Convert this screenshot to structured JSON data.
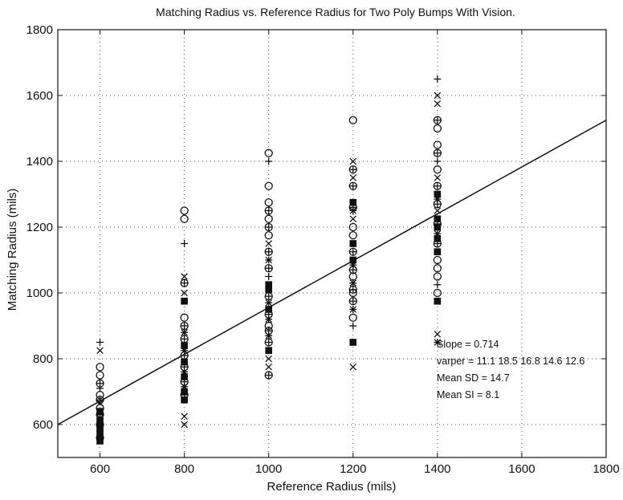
{
  "chart_data": {
    "type": "scatter",
    "title": "Matching Radius vs. Reference Radius for Two Poly Bumps With Vision.",
    "xlabel": "Reference Radius (mils)",
    "ylabel": "Matching Radius (mils)",
    "xlim": [
      500,
      1800
    ],
    "ylim": [
      500,
      1800
    ],
    "xticks": [
      600,
      800,
      1000,
      1200,
      1400,
      1600,
      1800
    ],
    "yticks": [
      600,
      800,
      1000,
      1200,
      1400,
      1600,
      1800
    ],
    "grid": "dotted",
    "marker_styles": [
      "circle",
      "plus",
      "x",
      "circle-plus",
      "star",
      "square"
    ],
    "fit_line": {
      "x": [
        500,
        1800
      ],
      "y": [
        600,
        1525
      ]
    },
    "annotations": [
      "Slope = 0.714",
      "varper = 11.1 18.5 16.8 14.6 12.6",
      "Mean SD = 14.7",
      "Mean SI = 8.1"
    ],
    "points": [
      {
        "x": 600,
        "y": 850,
        "m": "plus"
      },
      {
        "x": 600,
        "y": 825,
        "m": "x"
      },
      {
        "x": 600,
        "y": 775,
        "m": "circle"
      },
      {
        "x": 600,
        "y": 750,
        "m": "circle"
      },
      {
        "x": 600,
        "y": 725,
        "m": "circle-plus"
      },
      {
        "x": 600,
        "y": 710,
        "m": "plus"
      },
      {
        "x": 600,
        "y": 690,
        "m": "circle"
      },
      {
        "x": 600,
        "y": 675,
        "m": "circle-plus"
      },
      {
        "x": 600,
        "y": 665,
        "m": "x"
      },
      {
        "x": 600,
        "y": 650,
        "m": "circle"
      },
      {
        "x": 600,
        "y": 640,
        "m": "square"
      },
      {
        "x": 600,
        "y": 630,
        "m": "circle-plus"
      },
      {
        "x": 600,
        "y": 620,
        "m": "star"
      },
      {
        "x": 600,
        "y": 610,
        "m": "square"
      },
      {
        "x": 600,
        "y": 600,
        "m": "circle-plus"
      },
      {
        "x": 600,
        "y": 590,
        "m": "square"
      },
      {
        "x": 600,
        "y": 580,
        "m": "star"
      },
      {
        "x": 600,
        "y": 570,
        "m": "square"
      },
      {
        "x": 600,
        "y": 560,
        "m": "circle-plus"
      },
      {
        "x": 600,
        "y": 550,
        "m": "square"
      },
      {
        "x": 800,
        "y": 1250,
        "m": "circle"
      },
      {
        "x": 800,
        "y": 1225,
        "m": "circle"
      },
      {
        "x": 800,
        "y": 1150,
        "m": "plus"
      },
      {
        "x": 800,
        "y": 1050,
        "m": "x"
      },
      {
        "x": 800,
        "y": 1030,
        "m": "circle-plus"
      },
      {
        "x": 800,
        "y": 1000,
        "m": "x"
      },
      {
        "x": 800,
        "y": 975,
        "m": "square"
      },
      {
        "x": 800,
        "y": 925,
        "m": "circle"
      },
      {
        "x": 800,
        "y": 900,
        "m": "circle-plus"
      },
      {
        "x": 800,
        "y": 880,
        "m": "star"
      },
      {
        "x": 800,
        "y": 860,
        "m": "circle-plus"
      },
      {
        "x": 800,
        "y": 840,
        "m": "square"
      },
      {
        "x": 800,
        "y": 825,
        "m": "star"
      },
      {
        "x": 800,
        "y": 810,
        "m": "circle-plus"
      },
      {
        "x": 800,
        "y": 790,
        "m": "square"
      },
      {
        "x": 800,
        "y": 775,
        "m": "circle-plus"
      },
      {
        "x": 800,
        "y": 760,
        "m": "star"
      },
      {
        "x": 800,
        "y": 745,
        "m": "square"
      },
      {
        "x": 800,
        "y": 730,
        "m": "circle-plus"
      },
      {
        "x": 800,
        "y": 715,
        "m": "star"
      },
      {
        "x": 800,
        "y": 700,
        "m": "square"
      },
      {
        "x": 800,
        "y": 690,
        "m": "circle-plus"
      },
      {
        "x": 800,
        "y": 675,
        "m": "square"
      },
      {
        "x": 800,
        "y": 625,
        "m": "x"
      },
      {
        "x": 800,
        "y": 600,
        "m": "x"
      },
      {
        "x": 1000,
        "y": 1425,
        "m": "circle"
      },
      {
        "x": 1000,
        "y": 1400,
        "m": "plus"
      },
      {
        "x": 1000,
        "y": 1325,
        "m": "circle"
      },
      {
        "x": 1000,
        "y": 1275,
        "m": "circle"
      },
      {
        "x": 1000,
        "y": 1250,
        "m": "circle-plus"
      },
      {
        "x": 1000,
        "y": 1225,
        "m": "circle"
      },
      {
        "x": 1000,
        "y": 1200,
        "m": "circle-plus"
      },
      {
        "x": 1000,
        "y": 1175,
        "m": "circle"
      },
      {
        "x": 1000,
        "y": 1150,
        "m": "x"
      },
      {
        "x": 1000,
        "y": 1125,
        "m": "circle-plus"
      },
      {
        "x": 1000,
        "y": 1100,
        "m": "star"
      },
      {
        "x": 1000,
        "y": 1075,
        "m": "circle-plus"
      },
      {
        "x": 1000,
        "y": 1050,
        "m": "plus"
      },
      {
        "x": 1000,
        "y": 1025,
        "m": "square"
      },
      {
        "x": 1000,
        "y": 1010,
        "m": "square"
      },
      {
        "x": 1000,
        "y": 990,
        "m": "circle-plus"
      },
      {
        "x": 1000,
        "y": 970,
        "m": "star"
      },
      {
        "x": 1000,
        "y": 950,
        "m": "square"
      },
      {
        "x": 1000,
        "y": 935,
        "m": "circle-plus"
      },
      {
        "x": 1000,
        "y": 920,
        "m": "star"
      },
      {
        "x": 1000,
        "y": 900,
        "m": "circle"
      },
      {
        "x": 1000,
        "y": 885,
        "m": "circle-plus"
      },
      {
        "x": 1000,
        "y": 870,
        "m": "star"
      },
      {
        "x": 1000,
        "y": 850,
        "m": "circle-plus"
      },
      {
        "x": 1000,
        "y": 825,
        "m": "square"
      },
      {
        "x": 1000,
        "y": 800,
        "m": "x"
      },
      {
        "x": 1000,
        "y": 775,
        "m": "x"
      },
      {
        "x": 1000,
        "y": 750,
        "m": "circle-plus"
      },
      {
        "x": 1200,
        "y": 1525,
        "m": "circle"
      },
      {
        "x": 1200,
        "y": 1400,
        "m": "x"
      },
      {
        "x": 1200,
        "y": 1375,
        "m": "circle-plus"
      },
      {
        "x": 1200,
        "y": 1350,
        "m": "x"
      },
      {
        "x": 1200,
        "y": 1325,
        "m": "circle-plus"
      },
      {
        "x": 1200,
        "y": 1275,
        "m": "square"
      },
      {
        "x": 1200,
        "y": 1260,
        "m": "circle-plus"
      },
      {
        "x": 1200,
        "y": 1250,
        "m": "star"
      },
      {
        "x": 1200,
        "y": 1225,
        "m": "x"
      },
      {
        "x": 1200,
        "y": 1200,
        "m": "circle"
      },
      {
        "x": 1200,
        "y": 1175,
        "m": "circle"
      },
      {
        "x": 1200,
        "y": 1150,
        "m": "square"
      },
      {
        "x": 1200,
        "y": 1125,
        "m": "circle-plus"
      },
      {
        "x": 1200,
        "y": 1100,
        "m": "square"
      },
      {
        "x": 1200,
        "y": 1085,
        "m": "star"
      },
      {
        "x": 1200,
        "y": 1070,
        "m": "circle-plus"
      },
      {
        "x": 1200,
        "y": 1050,
        "m": "circle"
      },
      {
        "x": 1200,
        "y": 1030,
        "m": "star"
      },
      {
        "x": 1200,
        "y": 1010,
        "m": "circle-plus"
      },
      {
        "x": 1200,
        "y": 1000,
        "m": "circle"
      },
      {
        "x": 1200,
        "y": 975,
        "m": "circle-plus"
      },
      {
        "x": 1200,
        "y": 950,
        "m": "star"
      },
      {
        "x": 1200,
        "y": 925,
        "m": "circle"
      },
      {
        "x": 1200,
        "y": 900,
        "m": "plus"
      },
      {
        "x": 1200,
        "y": 850,
        "m": "square"
      },
      {
        "x": 1200,
        "y": 775,
        "m": "x"
      },
      {
        "x": 1400,
        "y": 1650,
        "m": "plus"
      },
      {
        "x": 1400,
        "y": 1600,
        "m": "x"
      },
      {
        "x": 1400,
        "y": 1575,
        "m": "x"
      },
      {
        "x": 1400,
        "y": 1525,
        "m": "circle-plus"
      },
      {
        "x": 1400,
        "y": 1500,
        "m": "circle"
      },
      {
        "x": 1400,
        "y": 1450,
        "m": "circle"
      },
      {
        "x": 1400,
        "y": 1425,
        "m": "circle-plus"
      },
      {
        "x": 1400,
        "y": 1400,
        "m": "plus"
      },
      {
        "x": 1400,
        "y": 1375,
        "m": "circle"
      },
      {
        "x": 1400,
        "y": 1350,
        "m": "x"
      },
      {
        "x": 1400,
        "y": 1325,
        "m": "circle-plus"
      },
      {
        "x": 1400,
        "y": 1300,
        "m": "square"
      },
      {
        "x": 1400,
        "y": 1285,
        "m": "star"
      },
      {
        "x": 1400,
        "y": 1270,
        "m": "circle-plus"
      },
      {
        "x": 1400,
        "y": 1250,
        "m": "x"
      },
      {
        "x": 1400,
        "y": 1225,
        "m": "square"
      },
      {
        "x": 1400,
        "y": 1210,
        "m": "circle-plus"
      },
      {
        "x": 1400,
        "y": 1200,
        "m": "square"
      },
      {
        "x": 1400,
        "y": 1180,
        "m": "star"
      },
      {
        "x": 1400,
        "y": 1165,
        "m": "square"
      },
      {
        "x": 1400,
        "y": 1150,
        "m": "circle-plus"
      },
      {
        "x": 1400,
        "y": 1125,
        "m": "square"
      },
      {
        "x": 1400,
        "y": 1100,
        "m": "circle"
      },
      {
        "x": 1400,
        "y": 1075,
        "m": "circle"
      },
      {
        "x": 1400,
        "y": 1050,
        "m": "circle"
      },
      {
        "x": 1400,
        "y": 1025,
        "m": "plus"
      },
      {
        "x": 1400,
        "y": 1000,
        "m": "circle"
      },
      {
        "x": 1400,
        "y": 975,
        "m": "square"
      },
      {
        "x": 1400,
        "y": 875,
        "m": "x"
      },
      {
        "x": 1400,
        "y": 850,
        "m": "star"
      }
    ]
  }
}
